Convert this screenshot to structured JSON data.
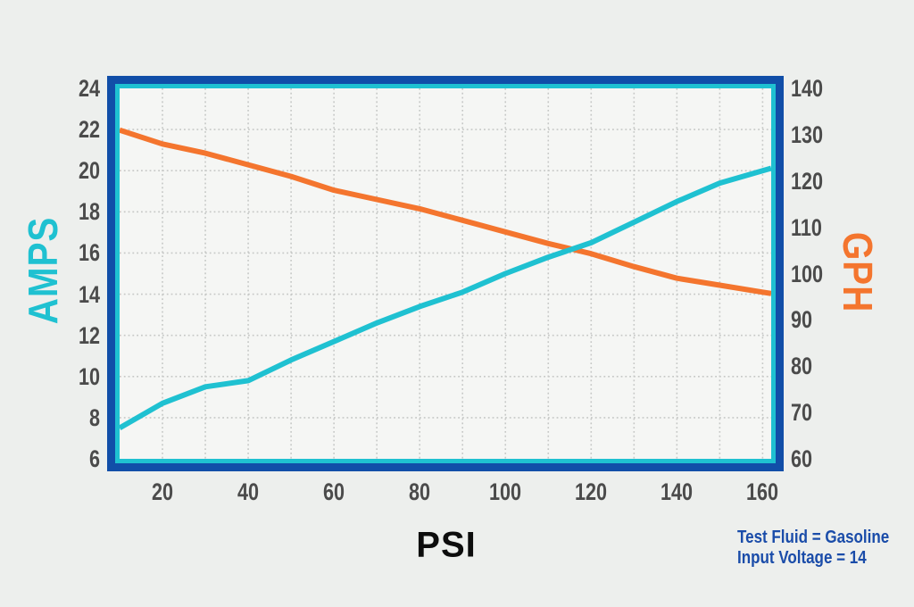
{
  "colors": {
    "background": "#EDEFED",
    "plot_background": "#F5F6F4",
    "border_outer": "#114EA8",
    "border_inner": "#1FC1D1",
    "amps_line": "#1FC1D1",
    "gph_line": "#F4752E",
    "tick_text": "#4B4B4B",
    "grid": "#C6C8C6",
    "annotation_text": "#1A4CA9",
    "psi_text": "#0D0D0D"
  },
  "legend": {
    "line1": "Test Fluid = Gasoline",
    "line2": "Input Voltage = 14"
  },
  "chart_data": {
    "type": "line",
    "title": "",
    "x": [
      10,
      20,
      30,
      40,
      50,
      60,
      70,
      80,
      90,
      100,
      110,
      120,
      130,
      140,
      150,
      160
    ],
    "series": [
      {
        "name": "AMPS",
        "axis": "left",
        "color": "#1FC1D1",
        "values": [
          7.5,
          8.7,
          9.5,
          9.8,
          10.8,
          11.7,
          12.6,
          13.4,
          14.1,
          15.0,
          15.8,
          16.5,
          17.5,
          18.5,
          19.4,
          20.0
        ]
      },
      {
        "name": "GPH",
        "axis": "right",
        "color": "#F4752E",
        "values": [
          131,
          128,
          126,
          123.5,
          121,
          118,
          116,
          114,
          111.5,
          109,
          106.5,
          104.3,
          101.5,
          99,
          97.5,
          96
        ]
      }
    ],
    "x_axis": {
      "label": "PSI",
      "ticks": [
        20,
        40,
        60,
        80,
        100,
        120,
        140,
        160
      ],
      "range": [
        10,
        162
      ],
      "grid_every": 10
    },
    "left_axis": {
      "label": "AMPS",
      "ticks": [
        24,
        22,
        20,
        18,
        16,
        14,
        12,
        10,
        8,
        6
      ],
      "range": [
        6,
        24
      ],
      "grid_every": 2
    },
    "right_axis": {
      "label": "GPH",
      "ticks": [
        140,
        130,
        120,
        110,
        100,
        90,
        80,
        70,
        60
      ],
      "range": [
        60,
        140
      ]
    },
    "grid": {
      "style": "dotted",
      "on": true
    },
    "legend_position": "bottom-right",
    "annotations": [
      "Test Fluid = Gasoline",
      "Input Voltage = 14"
    ]
  }
}
